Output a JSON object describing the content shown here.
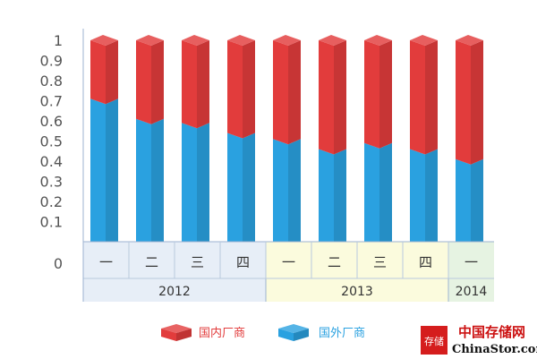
{
  "chart_data": {
    "type": "bar",
    "stacked": true,
    "style": "3d",
    "categories": [
      "一",
      "二",
      "三",
      "四",
      "一",
      "二",
      "三",
      "四",
      "一"
    ],
    "groups": [
      {
        "label": "2012",
        "count": 4,
        "color": "#e7eef7"
      },
      {
        "label": "2013",
        "count": 4,
        "color": "#fbfbdd"
      },
      {
        "label": "2014",
        "count": 1,
        "color": "#e6f3e2"
      }
    ],
    "series": [
      {
        "name": "国外厂商",
        "values": [
          0.71,
          0.61,
          0.59,
          0.54,
          0.51,
          0.46,
          0.49,
          0.46,
          0.41
        ],
        "color": "#2aa1e0"
      },
      {
        "name": "国内厂商",
        "values": [
          0.29,
          0.39,
          0.41,
          0.46,
          0.49,
          0.54,
          0.51,
          0.54,
          0.59
        ],
        "color": "#e23c3c"
      }
    ],
    "yticks": [
      "0",
      "0.1",
      "0.2",
      "0.3",
      "0.4",
      "0.5",
      "0.6",
      "0.7",
      "0.8",
      "0.9",
      "1"
    ],
    "ylim": [
      0,
      1
    ],
    "legend": {
      "position": "bottom",
      "entries": [
        "国内厂商",
        "国外厂商"
      ]
    }
  },
  "watermark": {
    "logo_text": "存储",
    "cn_text": "中国存储网",
    "en_text": "ChinaStor.com"
  }
}
